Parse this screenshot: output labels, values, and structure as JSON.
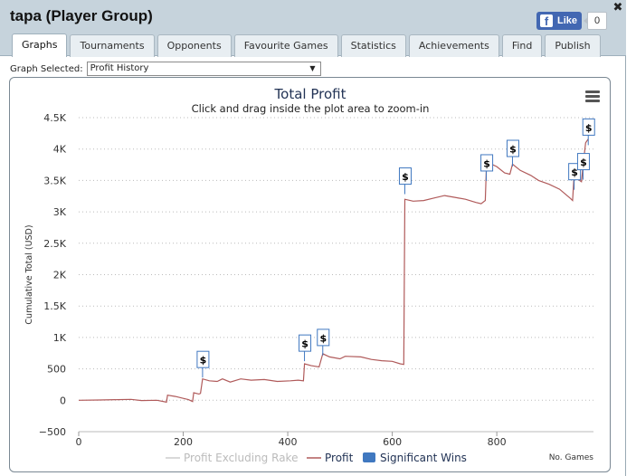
{
  "window": {
    "title": "tapa (Player Group)",
    "facebook": {
      "label": "Like",
      "count": "0"
    },
    "close_glyph": "✖"
  },
  "tabs": [
    {
      "label": "Graphs",
      "active": true
    },
    {
      "label": "Tournaments",
      "active": false
    },
    {
      "label": "Opponents",
      "active": false
    },
    {
      "label": "Favourite Games",
      "active": false
    },
    {
      "label": "Statistics",
      "active": false
    },
    {
      "label": "Achievements",
      "active": false
    },
    {
      "label": "Find",
      "active": false
    },
    {
      "label": "Publish",
      "active": false
    }
  ],
  "graph_selector": {
    "label": "Graph Selected:",
    "value": "Profit History"
  },
  "chart_data": {
    "type": "line",
    "title": "Total Profit",
    "subtitle": "Click and drag inside the plot area to zoom-in",
    "ylabel": "Cumulative Total (USD)",
    "xlabel": "No. Games",
    "xlim": [
      0,
      985
    ],
    "ylim": [
      -500,
      4500
    ],
    "xticks": [
      0,
      200,
      400,
      600,
      800
    ],
    "yticks": [
      {
        "value": -500,
        "label": "−500"
      },
      {
        "value": 0,
        "label": "0"
      },
      {
        "value": 500,
        "label": "500"
      },
      {
        "value": 1000,
        "label": "1K"
      },
      {
        "value": 1500,
        "label": "1.5K"
      },
      {
        "value": 2000,
        "label": "2K"
      },
      {
        "value": 2500,
        "label": "2.5K"
      },
      {
        "value": 3000,
        "label": "3K"
      },
      {
        "value": 3500,
        "label": "3.5K"
      },
      {
        "value": 4000,
        "label": "4K"
      },
      {
        "value": 4500,
        "label": "4.5K"
      }
    ],
    "grid": true,
    "series": [
      {
        "name": "Profit Excluding Rake",
        "color": "#cccccc",
        "visible": false,
        "points": []
      },
      {
        "name": "Profit",
        "color": "#b05a5a",
        "visible": true,
        "points": [
          [
            0,
            0
          ],
          [
            40,
            5
          ],
          [
            75,
            10
          ],
          [
            100,
            15
          ],
          [
            120,
            -5
          ],
          [
            150,
            0
          ],
          [
            168,
            -30
          ],
          [
            170,
            80
          ],
          [
            185,
            60
          ],
          [
            200,
            30
          ],
          [
            210,
            10
          ],
          [
            218,
            -20
          ],
          [
            220,
            120
          ],
          [
            230,
            100
          ],
          [
            233,
            110
          ],
          [
            237,
            340
          ],
          [
            250,
            310
          ],
          [
            265,
            300
          ],
          [
            275,
            340
          ],
          [
            290,
            290
          ],
          [
            310,
            340
          ],
          [
            330,
            320
          ],
          [
            355,
            330
          ],
          [
            380,
            300
          ],
          [
            405,
            310
          ],
          [
            420,
            320
          ],
          [
            430,
            310
          ],
          [
            432,
            580
          ],
          [
            445,
            550
          ],
          [
            460,
            530
          ],
          [
            467,
            740
          ],
          [
            480,
            690
          ],
          [
            500,
            660
          ],
          [
            510,
            700
          ],
          [
            540,
            690
          ],
          [
            560,
            650
          ],
          [
            580,
            630
          ],
          [
            600,
            620
          ],
          [
            615,
            580
          ],
          [
            622,
            570
          ],
          [
            624,
            3200
          ],
          [
            640,
            3170
          ],
          [
            660,
            3180
          ],
          [
            680,
            3220
          ],
          [
            700,
            3260
          ],
          [
            720,
            3230
          ],
          [
            740,
            3200
          ],
          [
            760,
            3150
          ],
          [
            770,
            3130
          ],
          [
            778,
            3180
          ],
          [
            780,
            3700
          ],
          [
            790,
            3760
          ],
          [
            800,
            3720
          ],
          [
            815,
            3620
          ],
          [
            825,
            3600
          ],
          [
            830,
            3760
          ],
          [
            845,
            3660
          ],
          [
            865,
            3580
          ],
          [
            880,
            3500
          ],
          [
            900,
            3440
          ],
          [
            920,
            3360
          ],
          [
            940,
            3220
          ],
          [
            945,
            3180
          ],
          [
            948,
            3590
          ],
          [
            955,
            3520
          ],
          [
            962,
            3480
          ],
          [
            965,
            3720
          ],
          [
            970,
            4100
          ],
          [
            975,
            4160
          ]
        ]
      }
    ],
    "significant_wins": {
      "name": "Significant Wins",
      "color": "#4078c0",
      "symbol": "$",
      "points": [
        [
          237,
          650
        ],
        [
          432,
          910
        ],
        [
          467,
          1000
        ],
        [
          624,
          3570
        ],
        [
          780,
          3780
        ],
        [
          830,
          4010
        ],
        [
          948,
          3640
        ],
        [
          965,
          3800
        ],
        [
          975,
          4350
        ]
      ]
    },
    "legend": {
      "placement": "bottom-center",
      "items": [
        "Profit Excluding Rake",
        "Profit",
        "Significant Wins"
      ]
    }
  }
}
